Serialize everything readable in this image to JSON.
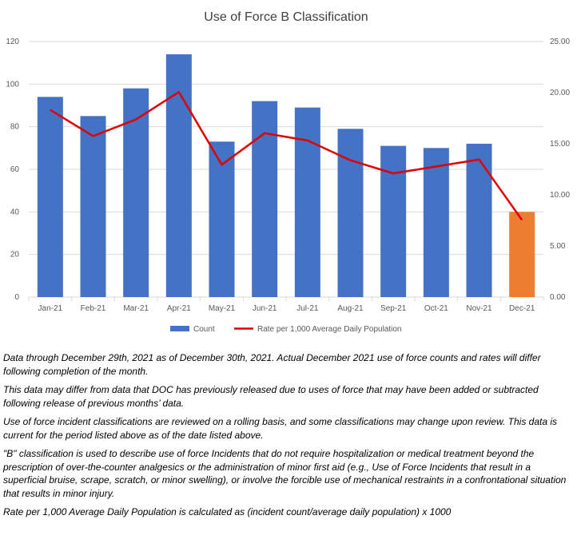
{
  "chart_data": {
    "type": "bar",
    "title": "Use of Force B Classification",
    "categories": [
      "Jan-21",
      "Feb-21",
      "Mar-21",
      "Apr-21",
      "May-21",
      "Jun-21",
      "Jul-21",
      "Aug-21",
      "Sep-21",
      "Oct-21",
      "Nov-21",
      "Dec-21"
    ],
    "series": [
      {
        "name": "Count",
        "type": "bar",
        "axis": "left",
        "color": "#4472C4",
        "highlight_last_color": "#ED7D31",
        "values": [
          94,
          85,
          98,
          114,
          73,
          92,
          89,
          79,
          71,
          70,
          72,
          40
        ]
      },
      {
        "name": "Rate per 1,000 Average Daily Population",
        "type": "line",
        "axis": "right",
        "color": "#E00000",
        "values": [
          18.32,
          15.75,
          17.38,
          20.06,
          12.95,
          16.03,
          15.32,
          13.38,
          12.1,
          12.77,
          13.46,
          7.54
        ]
      }
    ],
    "ylim": [
      0,
      120
    ],
    "yticks": [
      "0",
      "20",
      "40",
      "60",
      "80",
      "100",
      "120"
    ],
    "y2lim": [
      0,
      25
    ],
    "y2ticks": [
      "0.00",
      "5.00",
      "10.00",
      "15.00",
      "20.00",
      "25.00"
    ],
    "grid": true,
    "legend": "bottom"
  },
  "notes": [
    "Data through December 29th, 2021 as of December 30th, 2021. Actual December 2021 use of force counts and rates will differ following completion of the month.",
    "This data may differ from data that DOC has previously released due to uses of force that may have been added or subtracted following release of previous months’ data.",
    "Use of force incident classifications are reviewed on a rolling basis, and some  classifications may change upon review. This data is current for the period listed above as of the date listed above.",
    "\"B\" classification is used to describe use of force Incidents that do not require hospitalization or medical treatment beyond the prescription of over-the-counter analgesics or the administration of minor first aid (e.g., Use of Force Incidents that result in a superficial bruise, scrape, scratch, or minor swelling), or involve the forcible use of mechanical restraints in a confrontational situation that results in minor injury.",
    "Rate per 1,000 Average Daily Population is calculated as (incident count/average daily population) x 1000"
  ]
}
